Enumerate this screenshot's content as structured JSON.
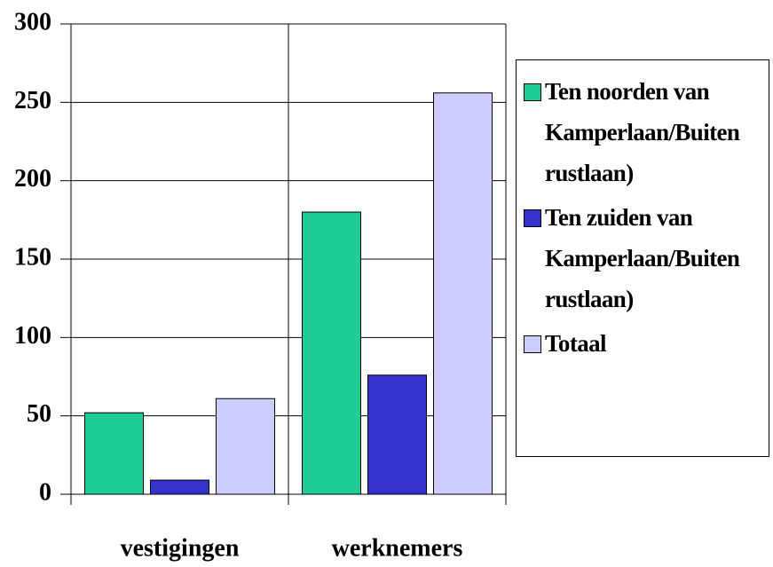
{
  "chart_data": {
    "type": "bar",
    "categories": [
      "vestigingen",
      "werknemers"
    ],
    "series": [
      {
        "name": "Ten noorden van Kamperlaan/Buiten rustlaan)",
        "color": "#1fcb96",
        "values": [
          52,
          180
        ]
      },
      {
        "name": "Ten zuiden van Kamperlaan/Buiten rustlaan)",
        "color": "#3333cc",
        "values": [
          9,
          76
        ]
      },
      {
        "name": "Totaal",
        "color": "#ccccff",
        "values": [
          61,
          256
        ]
      }
    ],
    "ylim": [
      0,
      300
    ],
    "yticks": [
      0,
      50,
      100,
      150,
      200,
      250,
      300
    ],
    "grid": true,
    "legend": "right"
  }
}
